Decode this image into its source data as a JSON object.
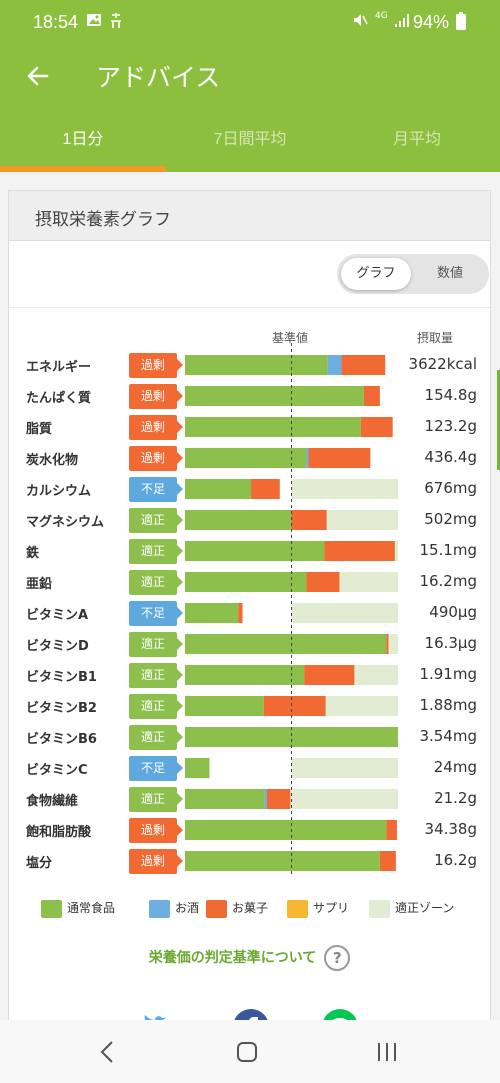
{
  "status_bar": {
    "time": "18:54",
    "battery": "94%",
    "network": "4G"
  },
  "header": {
    "title": "アドバイス"
  },
  "tabs": [
    {
      "label": "1日分",
      "active": true
    },
    {
      "label": "7日間平均",
      "active": false
    },
    {
      "label": "月平均",
      "active": false
    }
  ],
  "card": {
    "title": "摂取栄養素グラフ"
  },
  "toggle": {
    "graph": "グラフ",
    "numeric": "数値"
  },
  "columns": {
    "baseline": "基準値",
    "intake": "摂取量"
  },
  "badges": {
    "over": "過剰",
    "under": "不足",
    "ok": "適正"
  },
  "colors": {
    "food": "#8dbf4d",
    "alcohol": "#6cafe0",
    "snack": "#f26a33",
    "supplement": "#f7b731",
    "zone": "#e1ecd2",
    "over": "#f26a33",
    "under": "#5ea8dd",
    "ok": "#8dbf4d"
  },
  "chart_data": {
    "type": "bar",
    "stacked": true,
    "unit": "percent of reference",
    "categories": [
      "エネルギー",
      "たんぱく質",
      "脂質",
      "炭水化物",
      "カルシウム",
      "マグネシウム",
      "鉄",
      "亜鉛",
      "ビタミンA",
      "ビタミンD",
      "ビタミンB1",
      "ビタミンB2",
      "ビタミンB6",
      "ビタミンC",
      "食物繊維",
      "飽和脂肪酸",
      "塩分"
    ],
    "intake": [
      "3622kcal",
      "154.8g",
      "123.2g",
      "436.4g",
      "676mg",
      "502mg",
      "15.1mg",
      "16.2mg",
      "490μg",
      "16.3μg",
      "1.91mg",
      "1.88mg",
      "3.54mg",
      "24mg",
      "21.2g",
      "34.38g",
      "16.2g"
    ],
    "status": [
      "over",
      "over",
      "over",
      "over",
      "under",
      "ok",
      "ok",
      "ok",
      "under",
      "ok",
      "ok",
      "ok",
      "ok",
      "under",
      "ok",
      "over",
      "over"
    ],
    "series": [
      {
        "name": "通常食品",
        "values": [
          134,
          168,
          165,
          114,
          62,
          100,
          131,
          114,
          50,
          189,
          112,
          74,
          200,
          23,
          75,
          189,
          183
        ]
      },
      {
        "name": "お酒",
        "values": [
          13,
          0,
          0,
          2,
          0,
          0,
          0,
          0,
          0,
          0,
          0,
          0,
          0,
          0,
          2,
          0,
          0
        ]
      },
      {
        "name": "お菓子",
        "values": [
          41,
          15,
          30,
          58,
          27,
          33,
          66,
          31,
          4,
          2,
          47,
          58,
          0,
          0,
          22,
          10,
          15
        ]
      },
      {
        "name": "サプリ",
        "values": [
          0,
          0,
          0,
          0,
          0,
          0,
          0,
          0,
          0,
          0,
          0,
          0,
          0,
          0,
          0,
          0,
          0
        ]
      }
    ],
    "zone": [
      [
        90,
        110
      ],
      [
        90,
        110
      ],
      [
        90,
        110
      ],
      [
        90,
        110
      ],
      [
        100,
        200
      ],
      [
        100,
        200
      ],
      [
        100,
        200
      ],
      [
        100,
        200
      ],
      [
        100,
        200
      ],
      [
        100,
        200
      ],
      [
        100,
        200
      ],
      [
        100,
        200
      ],
      [
        100,
        200
      ],
      [
        100,
        200
      ],
      [
        100,
        200
      ],
      [
        0,
        100
      ],
      [
        0,
        100
      ]
    ],
    "reference": 100,
    "xlim": [
      0,
      200
    ]
  },
  "legend": [
    {
      "label": "通常食品",
      "color": "#8dbf4d"
    },
    {
      "label": "お酒",
      "color": "#6cafe0"
    },
    {
      "label": "お菓子",
      "color": "#f26a33"
    },
    {
      "label": "サプリ",
      "color": "#f7b731"
    },
    {
      "label": "適正ゾーン",
      "color": "#e1ecd2"
    }
  ],
  "info_link": {
    "label": "栄養価の判定基準について"
  },
  "share": [
    "twitter-icon",
    "facebook-icon",
    "line-icon"
  ]
}
